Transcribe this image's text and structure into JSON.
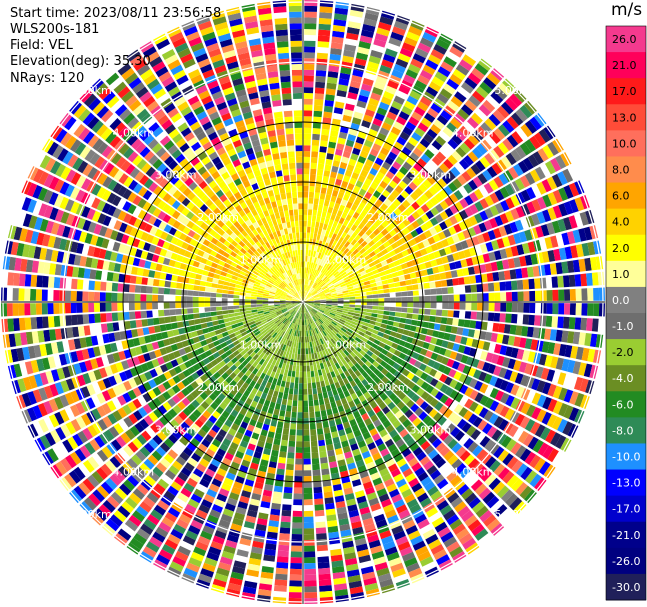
{
  "header": {
    "start_time": "Start time: 2023/08/11 23:56:58",
    "instrument": "WLS200s-181",
    "field": "Field: VEL",
    "elevation": "Elevation(deg): 35.30",
    "nrays": "NRays: 120"
  },
  "colorbar": {
    "unit": "m/s",
    "ticks": [
      "26.0",
      "21.0",
      "17.0",
      "13.0",
      "10.0",
      "8.0",
      "6.0",
      "4.0",
      "2.0",
      "1.0",
      "0.0",
      "-1.0",
      "-2.0",
      "-4.0",
      "-6.0",
      "-8.0",
      "-10.0",
      "-13.0",
      "-17.0",
      "-21.0",
      "-26.0",
      "-30.0"
    ],
    "colors": [
      "#f43a8e",
      "#ff005a",
      "#ff1a1a",
      "#ff4c38",
      "#ff6f5c",
      "#ff8c4c",
      "#ffa500",
      "#ffd200",
      "#ffff00",
      "#ffff99",
      "#808080",
      "#6e6e6e",
      "#9acd32",
      "#6b8e23",
      "#228b22",
      "#2e8b57",
      "#1e90ff",
      "#0000ff",
      "#0000cd",
      "#00008b",
      "#000080",
      "#20205a"
    ]
  },
  "chart_data": {
    "type": "ppi",
    "title": "",
    "field": "VEL",
    "unit": "m/s",
    "nrays": 120,
    "range_rings_km": [
      "1.00km",
      "2.00km",
      "3.00km",
      "4.00km",
      "5.00km"
    ],
    "vmin": -30.0,
    "vmax": 26.0,
    "colors": {
      "clear": "#ffffff",
      "ring": "#000000",
      "spoke": "#ffffff"
    }
  }
}
